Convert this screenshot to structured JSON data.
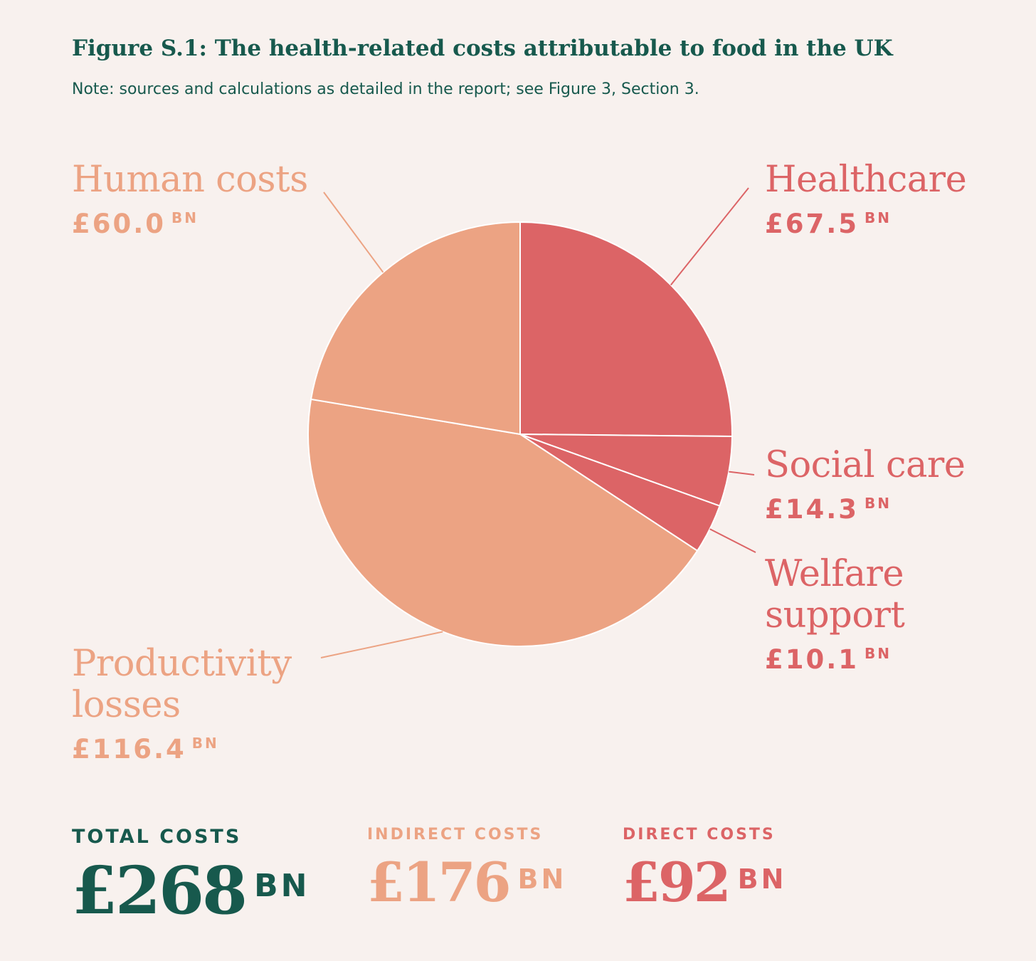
{
  "figure": {
    "title": "Figure S.1: The health-related costs attributable to food in the UK",
    "note": "Note: sources and calculations as detailed in the report; see Figure 3, Section 3."
  },
  "colors": {
    "indirect": "#eca383",
    "direct": "#dc6466",
    "total": "#17594d",
    "background": "#f8f1ee"
  },
  "chart_data": {
    "type": "pie",
    "unit": "BN",
    "currency": "£",
    "slices": [
      {
        "name": "Healthcare",
        "value": 67.5,
        "value_label": "£67.5",
        "group": "direct"
      },
      {
        "name": "Social care",
        "value": 14.3,
        "value_label": "£14.3",
        "group": "direct"
      },
      {
        "name": "Welfare support",
        "value": 10.1,
        "value_label": "£10.1",
        "group": "direct"
      },
      {
        "name": "Productivity losses",
        "value": 116.4,
        "value_label": "£116.4",
        "group": "indirect"
      },
      {
        "name": "Human costs",
        "value": 60.0,
        "value_label": "£60.0",
        "group": "indirect"
      }
    ],
    "start_angle": "12 o'clock",
    "direction": "clockwise"
  },
  "labels": {
    "healthcare": {
      "name": "Healthcare",
      "value": "£67.5"
    },
    "social_care": {
      "name": "Social care",
      "value": "£14.3"
    },
    "welfare_line1": "Welfare",
    "welfare_line2": "support",
    "welfare_value": "£10.1",
    "productivity_line1": "Productivity",
    "productivity_line2": "losses",
    "productivity_value": "£116.4",
    "human": {
      "name": "Human costs",
      "value": "£60.0"
    },
    "unit": "BN"
  },
  "summary": {
    "total": {
      "label": "TOTAL COSTS",
      "amount": "£268",
      "unit": "BN"
    },
    "indirect": {
      "label": "INDIRECT COSTS",
      "amount": "£176",
      "unit": "BN"
    },
    "direct": {
      "label": "DIRECT COSTS",
      "amount": "£92",
      "unit": "BN"
    }
  }
}
